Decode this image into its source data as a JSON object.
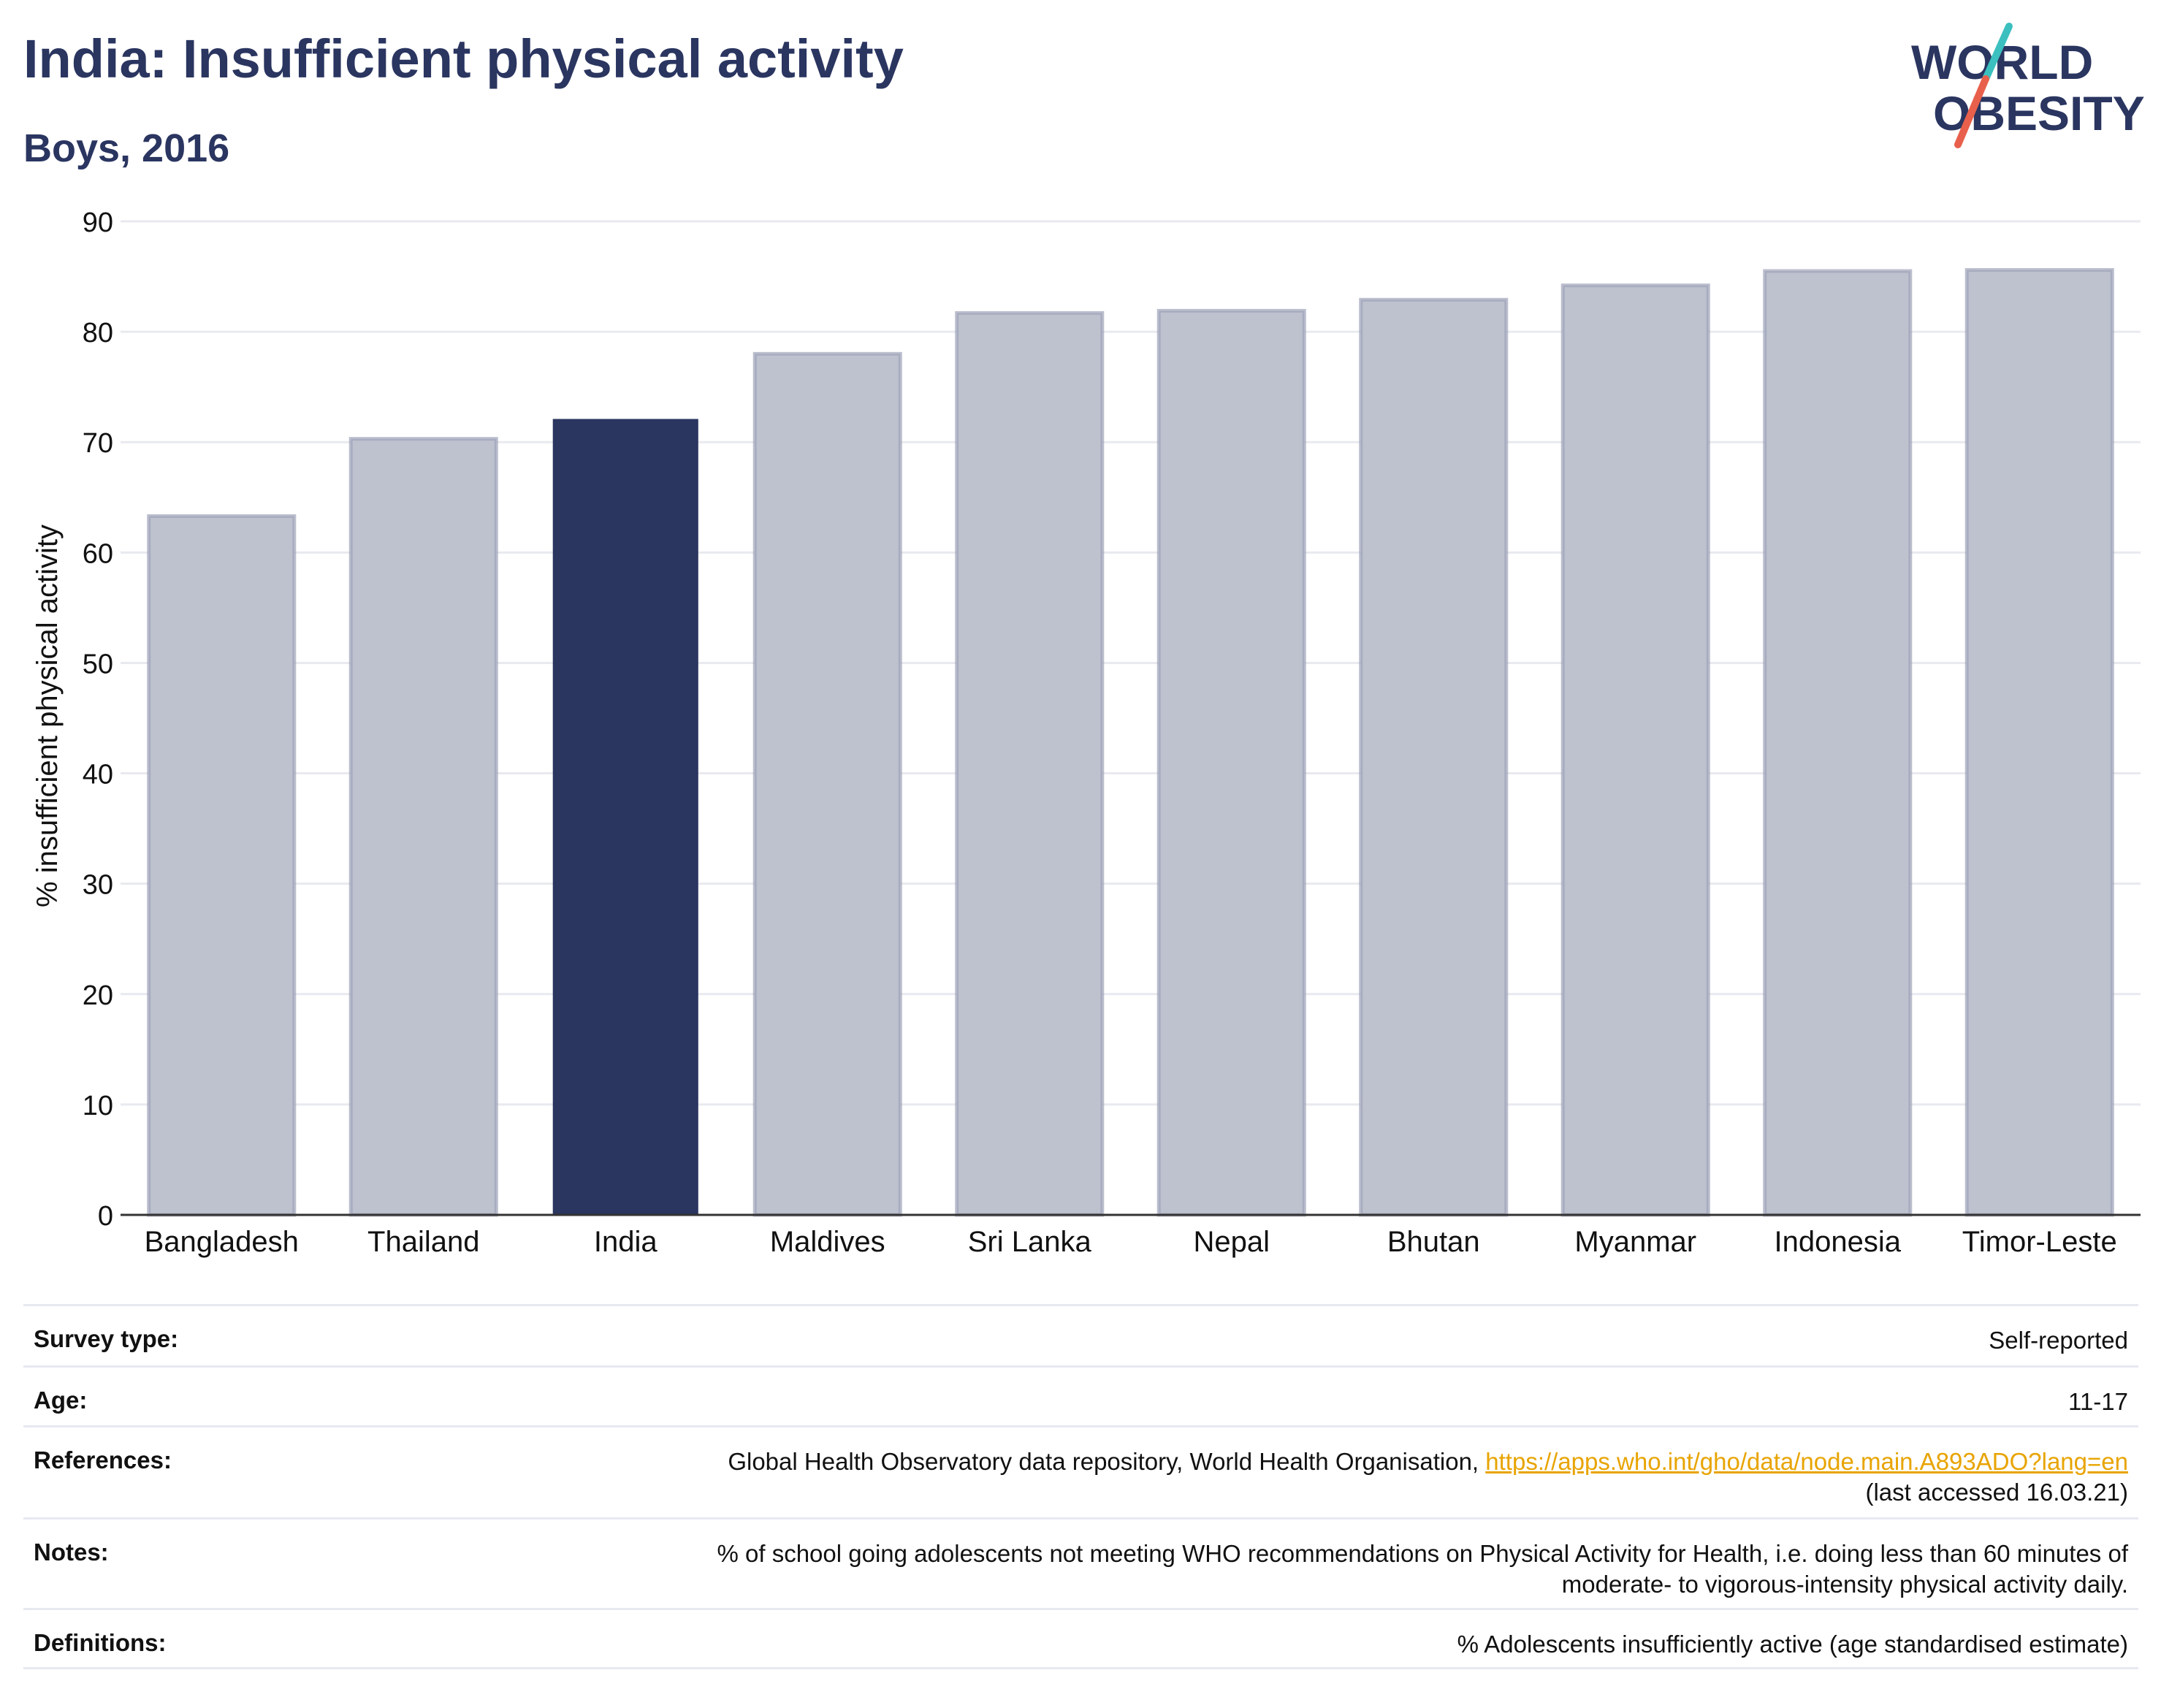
{
  "header": {
    "title": "India: Insufficient physical activity",
    "subtitle": "Boys, 2016"
  },
  "logo": {
    "line1": "WORLD",
    "line2": "OBESITY",
    "accent_colors": [
      "#3bbfbf",
      "#e8604c"
    ]
  },
  "colors": {
    "highlight_bar": "#2a3560",
    "other_bars": "#bec2cf",
    "other_bars_stroke": "#9ea3b8",
    "text": "#2a3560",
    "link": "#e8a400"
  },
  "chart_data": {
    "type": "bar",
    "title": "",
    "categories": [
      "Bangladesh",
      "Thailand",
      "India",
      "Maldives",
      "Sri Lanka",
      "Nepal",
      "Bhutan",
      "Myanmar",
      "Indonesia",
      "Timor-Leste"
    ],
    "values": [
      63.3,
      70.3,
      72.1,
      78.0,
      81.7,
      81.9,
      82.9,
      84.2,
      85.5,
      85.6
    ],
    "highlight": "India",
    "xlabel": "",
    "ylabel": "% insufficient physical activity",
    "ylim": [
      0,
      90
    ],
    "yticks": [
      0,
      10,
      20,
      30,
      40,
      50,
      60,
      70,
      80,
      90
    ],
    "grid": true
  },
  "info": {
    "survey_type": {
      "label": "Survey type:",
      "value": "Self-reported"
    },
    "age": {
      "label": "Age:",
      "value": "11-17"
    },
    "references": {
      "label": "References:",
      "value_prefix": "Global Health Observatory data repository, World Health Organisation, ",
      "link_text": "https://apps.who.int/gho/data/node.main.A893ADO?lang=en",
      "value_suffix": "(last accessed 16.03.21)"
    },
    "notes": {
      "label": "Notes:",
      "line1": "% of school going adolescents not meeting WHO recommendations on Physical Activity for Health, i.e. doing less than 60 minutes of",
      "line2": "moderate- to vigorous-intensity physical activity daily."
    },
    "definitions": {
      "label": "Definitions:",
      "value": "% Adolescents insufficiently active (age standardised estimate)"
    }
  }
}
